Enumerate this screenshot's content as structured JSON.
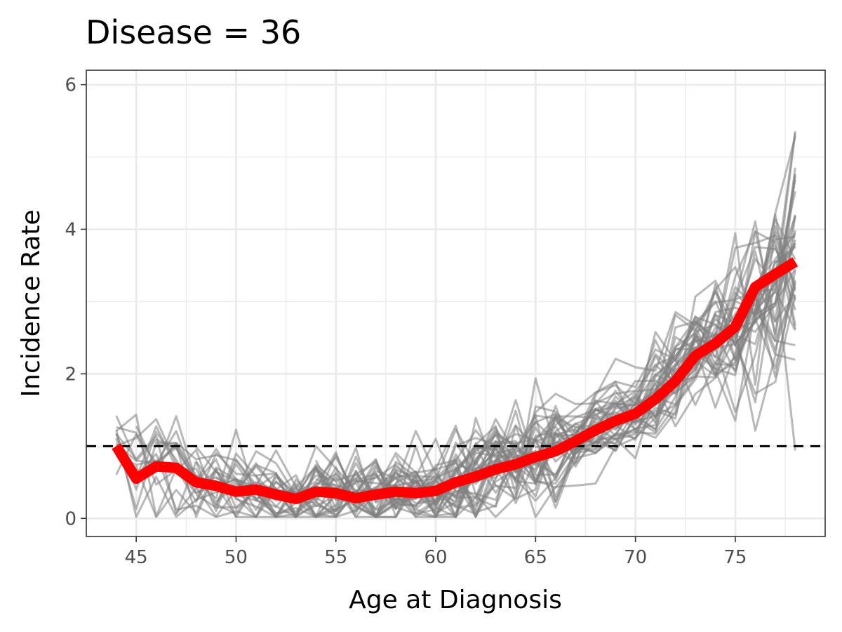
{
  "chart_data": {
    "type": "line",
    "title": "Disease = 36",
    "xlabel": "Age at Diagnosis",
    "ylabel": "Incidence Rate",
    "xlim": [
      42.5,
      79.5
    ],
    "ylim": [
      -0.25,
      6.2
    ],
    "x_ticks": [
      45,
      50,
      55,
      60,
      65,
      70,
      75
    ],
    "y_ticks": [
      0,
      2,
      4,
      6
    ],
    "x": [
      44,
      45,
      46,
      47,
      48,
      49,
      50,
      51,
      52,
      53,
      54,
      55,
      56,
      57,
      58,
      59,
      60,
      61,
      62,
      63,
      64,
      65,
      66,
      67,
      68,
      69,
      70,
      71,
      72,
      73,
      74,
      75,
      76,
      77,
      78
    ],
    "reference_line": {
      "y": 1.0,
      "style": "dashed",
      "color": "#000000"
    },
    "series": [
      {
        "role": "mean",
        "color": "#ff0000",
        "values": [
          1.0,
          0.55,
          0.72,
          0.7,
          0.5,
          0.45,
          0.37,
          0.4,
          0.33,
          0.27,
          0.37,
          0.35,
          0.28,
          0.33,
          0.37,
          0.35,
          0.38,
          0.5,
          0.58,
          0.68,
          0.75,
          0.85,
          0.93,
          1.07,
          1.22,
          1.35,
          1.45,
          1.65,
          1.9,
          2.25,
          2.42,
          2.65,
          3.2,
          3.38,
          3.55
        ]
      }
    ],
    "replicates": {
      "color": "#808080",
      "opacity": 0.55,
      "count": 40,
      "description_free": true
    },
    "grid": true,
    "legend": "none"
  }
}
